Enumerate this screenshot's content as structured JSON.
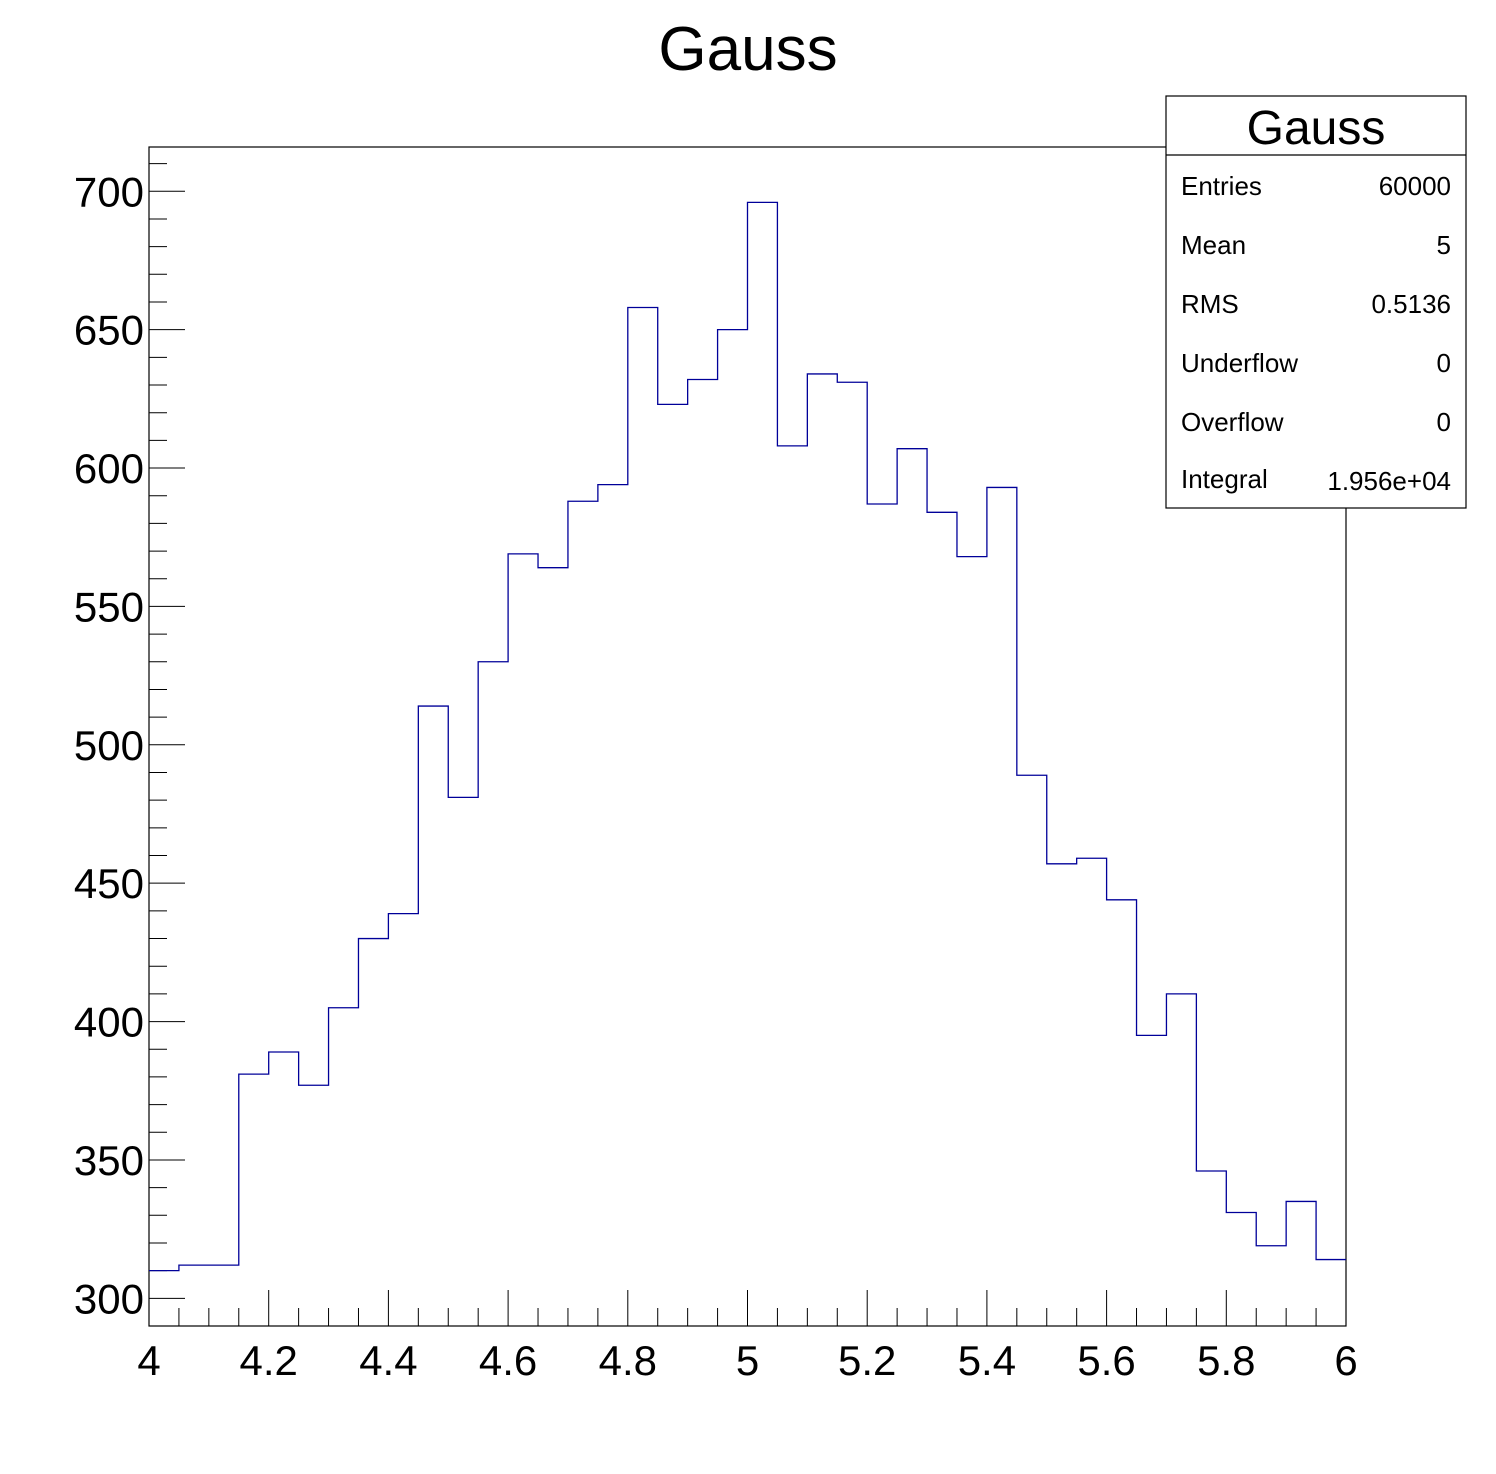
{
  "chart_data": {
    "type": "bar",
    "title": "Gauss",
    "xlim": [
      4,
      6
    ],
    "ylim": [
      290,
      716
    ],
    "x_ticks": [
      4,
      4.2,
      4.4,
      4.6,
      4.8,
      5,
      5.2,
      5.4,
      5.6,
      5.8,
      6
    ],
    "y_ticks": [
      300,
      350,
      400,
      450,
      500,
      550,
      600,
      650,
      700
    ],
    "x_tick_labels": [
      "4",
      "4.2",
      "4.4",
      "4.6",
      "4.8",
      "5",
      "5.2",
      "5.4",
      "5.6",
      "5.8",
      "6"
    ],
    "y_tick_labels": [
      "300",
      "350",
      "400",
      "450",
      "500",
      "550",
      "600",
      "650",
      "700"
    ],
    "bin_edges": [
      4.0,
      4.05,
      4.1,
      4.15,
      4.2,
      4.25,
      4.3,
      4.35,
      4.4,
      4.45,
      4.5,
      4.55,
      4.6,
      4.65,
      4.7,
      4.75,
      4.8,
      4.85,
      4.9,
      4.95,
      5.0,
      5.05,
      5.1,
      5.15,
      5.2,
      5.25,
      5.3,
      5.35,
      5.4,
      5.45,
      5.5,
      5.55,
      5.6,
      5.65,
      5.7,
      5.75,
      5.8,
      5.85,
      5.9,
      5.95,
      6.0
    ],
    "values": [
      310,
      312,
      312,
      381,
      389,
      377,
      405,
      430,
      439,
      514,
      481,
      530,
      569,
      564,
      588,
      594,
      658,
      623,
      632,
      650,
      696,
      608,
      634,
      631,
      587,
      607,
      584,
      568,
      593,
      489,
      457,
      459,
      444,
      395,
      410,
      346,
      331,
      319,
      335,
      314
    ],
    "line_color": "#000099",
    "grid": false,
    "legend": "none",
    "stats_box": {
      "title": "Gauss",
      "rows": [
        {
          "label": "Entries",
          "value": "60000"
        },
        {
          "label": "Mean",
          "value": "5"
        },
        {
          "label": "RMS",
          "value": "0.5136"
        },
        {
          "label": "Underflow",
          "value": "0"
        },
        {
          "label": "Overflow",
          "value": "0"
        },
        {
          "label": "Integral",
          "value": "1.956e+04"
        }
      ]
    }
  }
}
